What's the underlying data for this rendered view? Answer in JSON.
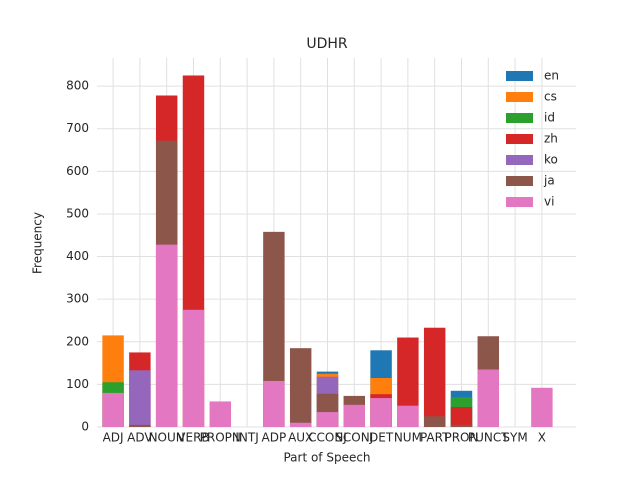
{
  "chart_data": {
    "type": "bar",
    "title": "UDHR",
    "x_label": "Part of Speech",
    "y_label": "Frequency",
    "categories": [
      "ADJ",
      "ADV",
      "NOUN",
      "VERB",
      "PROPN",
      "INTJ",
      "ADP",
      "AUX",
      "CCONJ",
      "SCONJ",
      "DET",
      "NUM",
      "PART",
      "PRON",
      "PUNCT",
      "SYM",
      "X"
    ],
    "series": [
      {
        "name": "en",
        "color": "#1f77b4",
        "values": [
          0,
          0,
          0,
          0,
          0,
          0,
          0,
          0,
          130,
          0,
          180,
          0,
          0,
          85,
          0,
          0,
          0
        ]
      },
      {
        "name": "cs",
        "color": "#ff7f0e",
        "values": [
          215,
          0,
          0,
          0,
          0,
          0,
          0,
          0,
          125,
          0,
          115,
          0,
          0,
          0,
          0,
          0,
          0
        ]
      },
      {
        "name": "id",
        "color": "#2ca02c",
        "values": [
          105,
          0,
          0,
          0,
          0,
          0,
          0,
          0,
          0,
          0,
          0,
          0,
          0,
          70,
          0,
          0,
          0
        ]
      },
      {
        "name": "zh",
        "color": "#d62728",
        "values": [
          0,
          175,
          778,
          825,
          0,
          0,
          0,
          0,
          0,
          0,
          77,
          210,
          233,
          47,
          0,
          0,
          0
        ]
      },
      {
        "name": "ko",
        "color": "#9467bd",
        "values": [
          0,
          133,
          0,
          0,
          0,
          0,
          0,
          0,
          118,
          0,
          0,
          0,
          0,
          0,
          0,
          0,
          0
        ]
      },
      {
        "name": "ja",
        "color": "#8c564b",
        "values": [
          0,
          5,
          672,
          0,
          0,
          0,
          458,
          185,
          78,
          73,
          0,
          0,
          25,
          5,
          213,
          0,
          0
        ]
      },
      {
        "name": "vi",
        "color": "#e377c2",
        "values": [
          80,
          0,
          428,
          275,
          60,
          0,
          108,
          10,
          35,
          52,
          68,
          50,
          0,
          0,
          135,
          0,
          92
        ]
      }
    ],
    "ylim": [
      0,
      866
    ],
    "yticks": [
      0,
      100,
      200,
      300,
      400,
      500,
      600,
      700,
      800
    ],
    "grid": true,
    "legend": "upper right"
  }
}
